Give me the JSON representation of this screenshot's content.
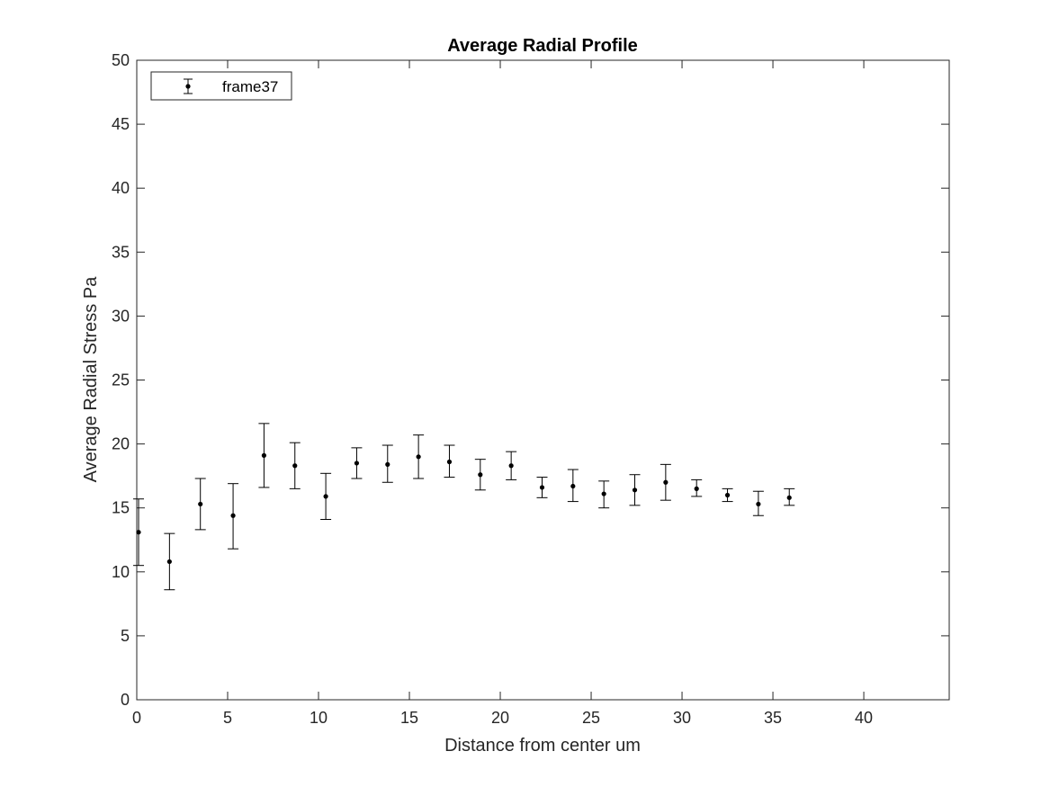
{
  "chart_data": {
    "type": "scatter",
    "title": "Average Radial Profile",
    "xlabel": "Distance from center um",
    "ylabel": "Average Radial Stress Pa",
    "xlim": [
      0,
      44.7
    ],
    "ylim": [
      0,
      50
    ],
    "xticks": [
      0,
      5,
      10,
      15,
      20,
      25,
      30,
      35,
      40
    ],
    "yticks": [
      0,
      5,
      10,
      15,
      20,
      25,
      30,
      35,
      40,
      45,
      50
    ],
    "grid": false,
    "legend_position": "top-left",
    "series": [
      {
        "name": "frame37",
        "marker": "dot",
        "errorbars": true,
        "color": "#000000",
        "points": [
          {
            "x": 0.1,
            "y": 13.1,
            "lower": 10.5,
            "upper": 15.7
          },
          {
            "x": 1.8,
            "y": 10.8,
            "lower": 8.6,
            "upper": 13.0
          },
          {
            "x": 3.5,
            "y": 15.3,
            "lower": 13.3,
            "upper": 17.3
          },
          {
            "x": 5.3,
            "y": 14.4,
            "lower": 11.8,
            "upper": 16.9
          },
          {
            "x": 7.0,
            "y": 19.1,
            "lower": 16.6,
            "upper": 21.6
          },
          {
            "x": 8.7,
            "y": 18.3,
            "lower": 16.5,
            "upper": 20.1
          },
          {
            "x": 10.4,
            "y": 15.9,
            "lower": 14.1,
            "upper": 17.7
          },
          {
            "x": 12.1,
            "y": 18.5,
            "lower": 17.3,
            "upper": 19.7
          },
          {
            "x": 13.8,
            "y": 18.4,
            "lower": 17.0,
            "upper": 19.9
          },
          {
            "x": 15.5,
            "y": 19.0,
            "lower": 17.3,
            "upper": 20.7
          },
          {
            "x": 17.2,
            "y": 18.6,
            "lower": 17.4,
            "upper": 19.9
          },
          {
            "x": 18.9,
            "y": 17.6,
            "lower": 16.4,
            "upper": 18.8
          },
          {
            "x": 20.6,
            "y": 18.3,
            "lower": 17.2,
            "upper": 19.4
          },
          {
            "x": 22.3,
            "y": 16.6,
            "lower": 15.8,
            "upper": 17.4
          },
          {
            "x": 24.0,
            "y": 16.7,
            "lower": 15.5,
            "upper": 18.0
          },
          {
            "x": 25.7,
            "y": 16.1,
            "lower": 15.0,
            "upper": 17.1
          },
          {
            "x": 27.4,
            "y": 16.4,
            "lower": 15.2,
            "upper": 17.6
          },
          {
            "x": 29.1,
            "y": 17.0,
            "lower": 15.6,
            "upper": 18.4
          },
          {
            "x": 30.8,
            "y": 16.5,
            "lower": 15.9,
            "upper": 17.2
          },
          {
            "x": 32.5,
            "y": 16.0,
            "lower": 15.5,
            "upper": 16.5
          },
          {
            "x": 34.2,
            "y": 15.3,
            "lower": 14.4,
            "upper": 16.3
          },
          {
            "x": 35.9,
            "y": 15.8,
            "lower": 15.2,
            "upper": 16.5
          }
        ]
      }
    ]
  }
}
